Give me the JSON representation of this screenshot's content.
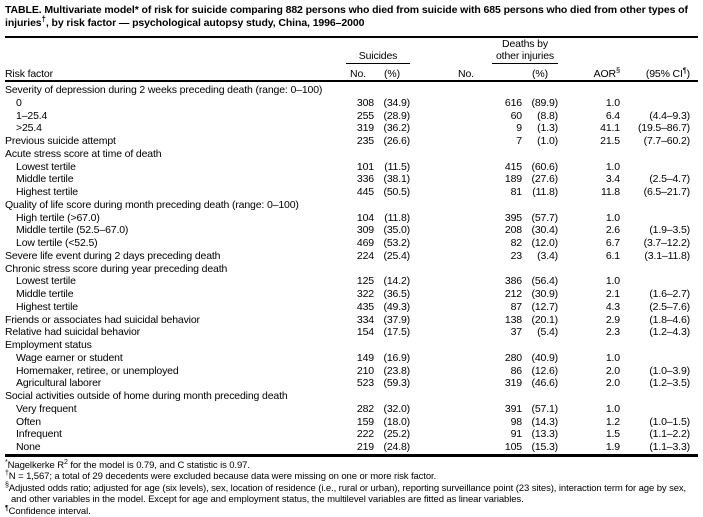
{
  "title": {
    "pre": "TABLE. Multivariate model* of risk for suicide comparing 882 persons who died from suicide with 685 persons who died from other types of injuries",
    "sup": "†",
    "post": ", by risk factor — psychological autopsy study, China, 1996–2000"
  },
  "header": {
    "risk_factor": "Risk factor",
    "group1": "Suicides",
    "group2_line1": "Deaths by",
    "group2_line2": "other injuries",
    "no": "No.",
    "pct": "(%)",
    "aor": "AOR",
    "aor_sup": "§",
    "ci_pre": "(95% CI",
    "ci_sup": "¶",
    "ci_post": ")"
  },
  "table": {
    "rows": [
      {
        "label": "Severity of depression during 2 weeks preceding death (range: 0–100)",
        "indent": 0
      },
      {
        "label": "0",
        "indent": 1,
        "cells": [
          "308",
          "(34.9)",
          "616",
          "(89.9)",
          "1.0",
          ""
        ]
      },
      {
        "label": "1–25.4",
        "indent": 1,
        "cells": [
          "255",
          "(28.9)",
          "60",
          "(8.8)",
          "6.4",
          "(4.4–9.3)"
        ]
      },
      {
        "label": ">25.4",
        "indent": 1,
        "cells": [
          "319",
          "(36.2)",
          "9",
          "(1.3)",
          "41.1",
          "(19.5–86.7)"
        ]
      },
      {
        "label": "Previous suicide attempt",
        "indent": 0,
        "cells": [
          "235",
          "(26.6)",
          "7",
          "(1.0)",
          "21.5",
          "(7.7–60.2)"
        ]
      },
      {
        "label": "Acute stress score at time of death",
        "indent": 0
      },
      {
        "label": "Lowest tertile",
        "indent": 1,
        "cells": [
          "101",
          "(11.5)",
          "415",
          "(60.6)",
          "1.0",
          ""
        ]
      },
      {
        "label": "Middle tertile",
        "indent": 1,
        "cells": [
          "336",
          "(38.1)",
          "189",
          "(27.6)",
          "3.4",
          "(2.5–4.7)"
        ]
      },
      {
        "label": "Highest tertile",
        "indent": 1,
        "cells": [
          "445",
          "(50.5)",
          "81",
          "(11.8)",
          "11.8",
          "(6.5–21.7)"
        ]
      },
      {
        "label": "Quality of life score during month preceding death (range: 0–100)",
        "indent": 0
      },
      {
        "label": "High tertile (>67.0)",
        "indent": 1,
        "cells": [
          "104",
          "(11.8)",
          "395",
          "(57.7)",
          "1.0",
          ""
        ]
      },
      {
        "label": "Middle tertile (52.5–67.0)",
        "indent": 1,
        "cells": [
          "309",
          "(35.0)",
          "208",
          "(30.4)",
          "2.6",
          "(1.9–3.5)"
        ]
      },
      {
        "label": "Low tertile (<52.5)",
        "indent": 1,
        "cells": [
          "469",
          "(53.2)",
          "82",
          "(12.0)",
          "6.7",
          "(3.7–12.2)"
        ]
      },
      {
        "label": "Severe life event during 2 days preceding death",
        "indent": 0,
        "cells": [
          "224",
          "(25.4)",
          "23",
          "(3.4)",
          "6.1",
          "(3.1–11.8)"
        ]
      },
      {
        "label": "Chronic stress score during year preceding death",
        "indent": 0
      },
      {
        "label": "Lowest tertile",
        "indent": 1,
        "cells": [
          "125",
          "(14.2)",
          "386",
          "(56.4)",
          "1.0",
          ""
        ]
      },
      {
        "label": "Middle tertile",
        "indent": 1,
        "cells": [
          "322",
          "(36.5)",
          "212",
          "(30.9)",
          "2.1",
          "(1.6–2.7)"
        ]
      },
      {
        "label": "Highest tertile",
        "indent": 1,
        "cells": [
          "435",
          "(49.3)",
          "87",
          "(12.7)",
          "4.3",
          "(2.5–7.6)"
        ]
      },
      {
        "label": "Friends or associates had suicidal behavior",
        "indent": 0,
        "cells": [
          "334",
          "(37.9)",
          "138",
          "(20.1)",
          "2.9",
          "(1.8–4.6)"
        ]
      },
      {
        "label": "Relative had suicidal behavior",
        "indent": 0,
        "cells": [
          "154",
          "(17.5)",
          "37",
          "(5.4)",
          "2.3",
          "(1.2–4.3)"
        ]
      },
      {
        "label": "Employment status",
        "indent": 0
      },
      {
        "label": "Wage earner or student",
        "indent": 1,
        "cells": [
          "149",
          "(16.9)",
          "280",
          "(40.9)",
          "1.0",
          ""
        ]
      },
      {
        "label": "Homemaker, retiree, or unemployed",
        "indent": 1,
        "cells": [
          "210",
          "(23.8)",
          "86",
          "(12.6)",
          "2.0",
          "(1.0–3.9)"
        ]
      },
      {
        "label": "Agricultural laborer",
        "indent": 1,
        "cells": [
          "523",
          "(59.3)",
          "319",
          "(46.6)",
          "2.0",
          "(1.2–3.5)"
        ]
      },
      {
        "label": "Social activities outside of home during month preceding death",
        "indent": 0
      },
      {
        "label": "Very frequent",
        "indent": 1,
        "cells": [
          "282",
          "(32.0)",
          "391",
          "(57.1)",
          "1.0",
          ""
        ]
      },
      {
        "label": "Often",
        "indent": 1,
        "cells": [
          "159",
          "(18.0)",
          "98",
          "(14.3)",
          "1.2",
          "(1.0–1.5)"
        ]
      },
      {
        "label": "Infrequent",
        "indent": 1,
        "cells": [
          "222",
          "(25.2)",
          "91",
          "(13.3)",
          "1.5",
          "(1.1–2.2)"
        ]
      },
      {
        "label": "None",
        "indent": 1,
        "cells": [
          "219",
          "(24.8)",
          "105",
          "(15.3)",
          "1.9",
          "(1.1–3.3)"
        ]
      }
    ]
  },
  "footnotes": [
    {
      "marker": "*",
      "pre": "Nagelkerke R",
      "sup": "2",
      "post": " for the model is 0.79, and C statistic is 0.97."
    },
    {
      "marker": "†",
      "pre": "N = 1,567; a total of 29 decedents were excluded because data were missing on one or more risk factor.",
      "sup": "",
      "post": ""
    },
    {
      "marker": "§",
      "pre": "Adjusted odds ratio; adjusted for age (six levels), sex, location of residence (i.e., rural or urban), reporting surveillance point (23 sites), interaction term for age by sex, and other variables in the model. Except for age and employment status, the multilevel variables are fitted as linear variables.",
      "sup": "",
      "post": ""
    },
    {
      "marker": "¶",
      "pre": "Confidence interval.",
      "sup": "",
      "post": ""
    }
  ],
  "colors": {
    "text": "#000000",
    "background": "#ffffff"
  }
}
